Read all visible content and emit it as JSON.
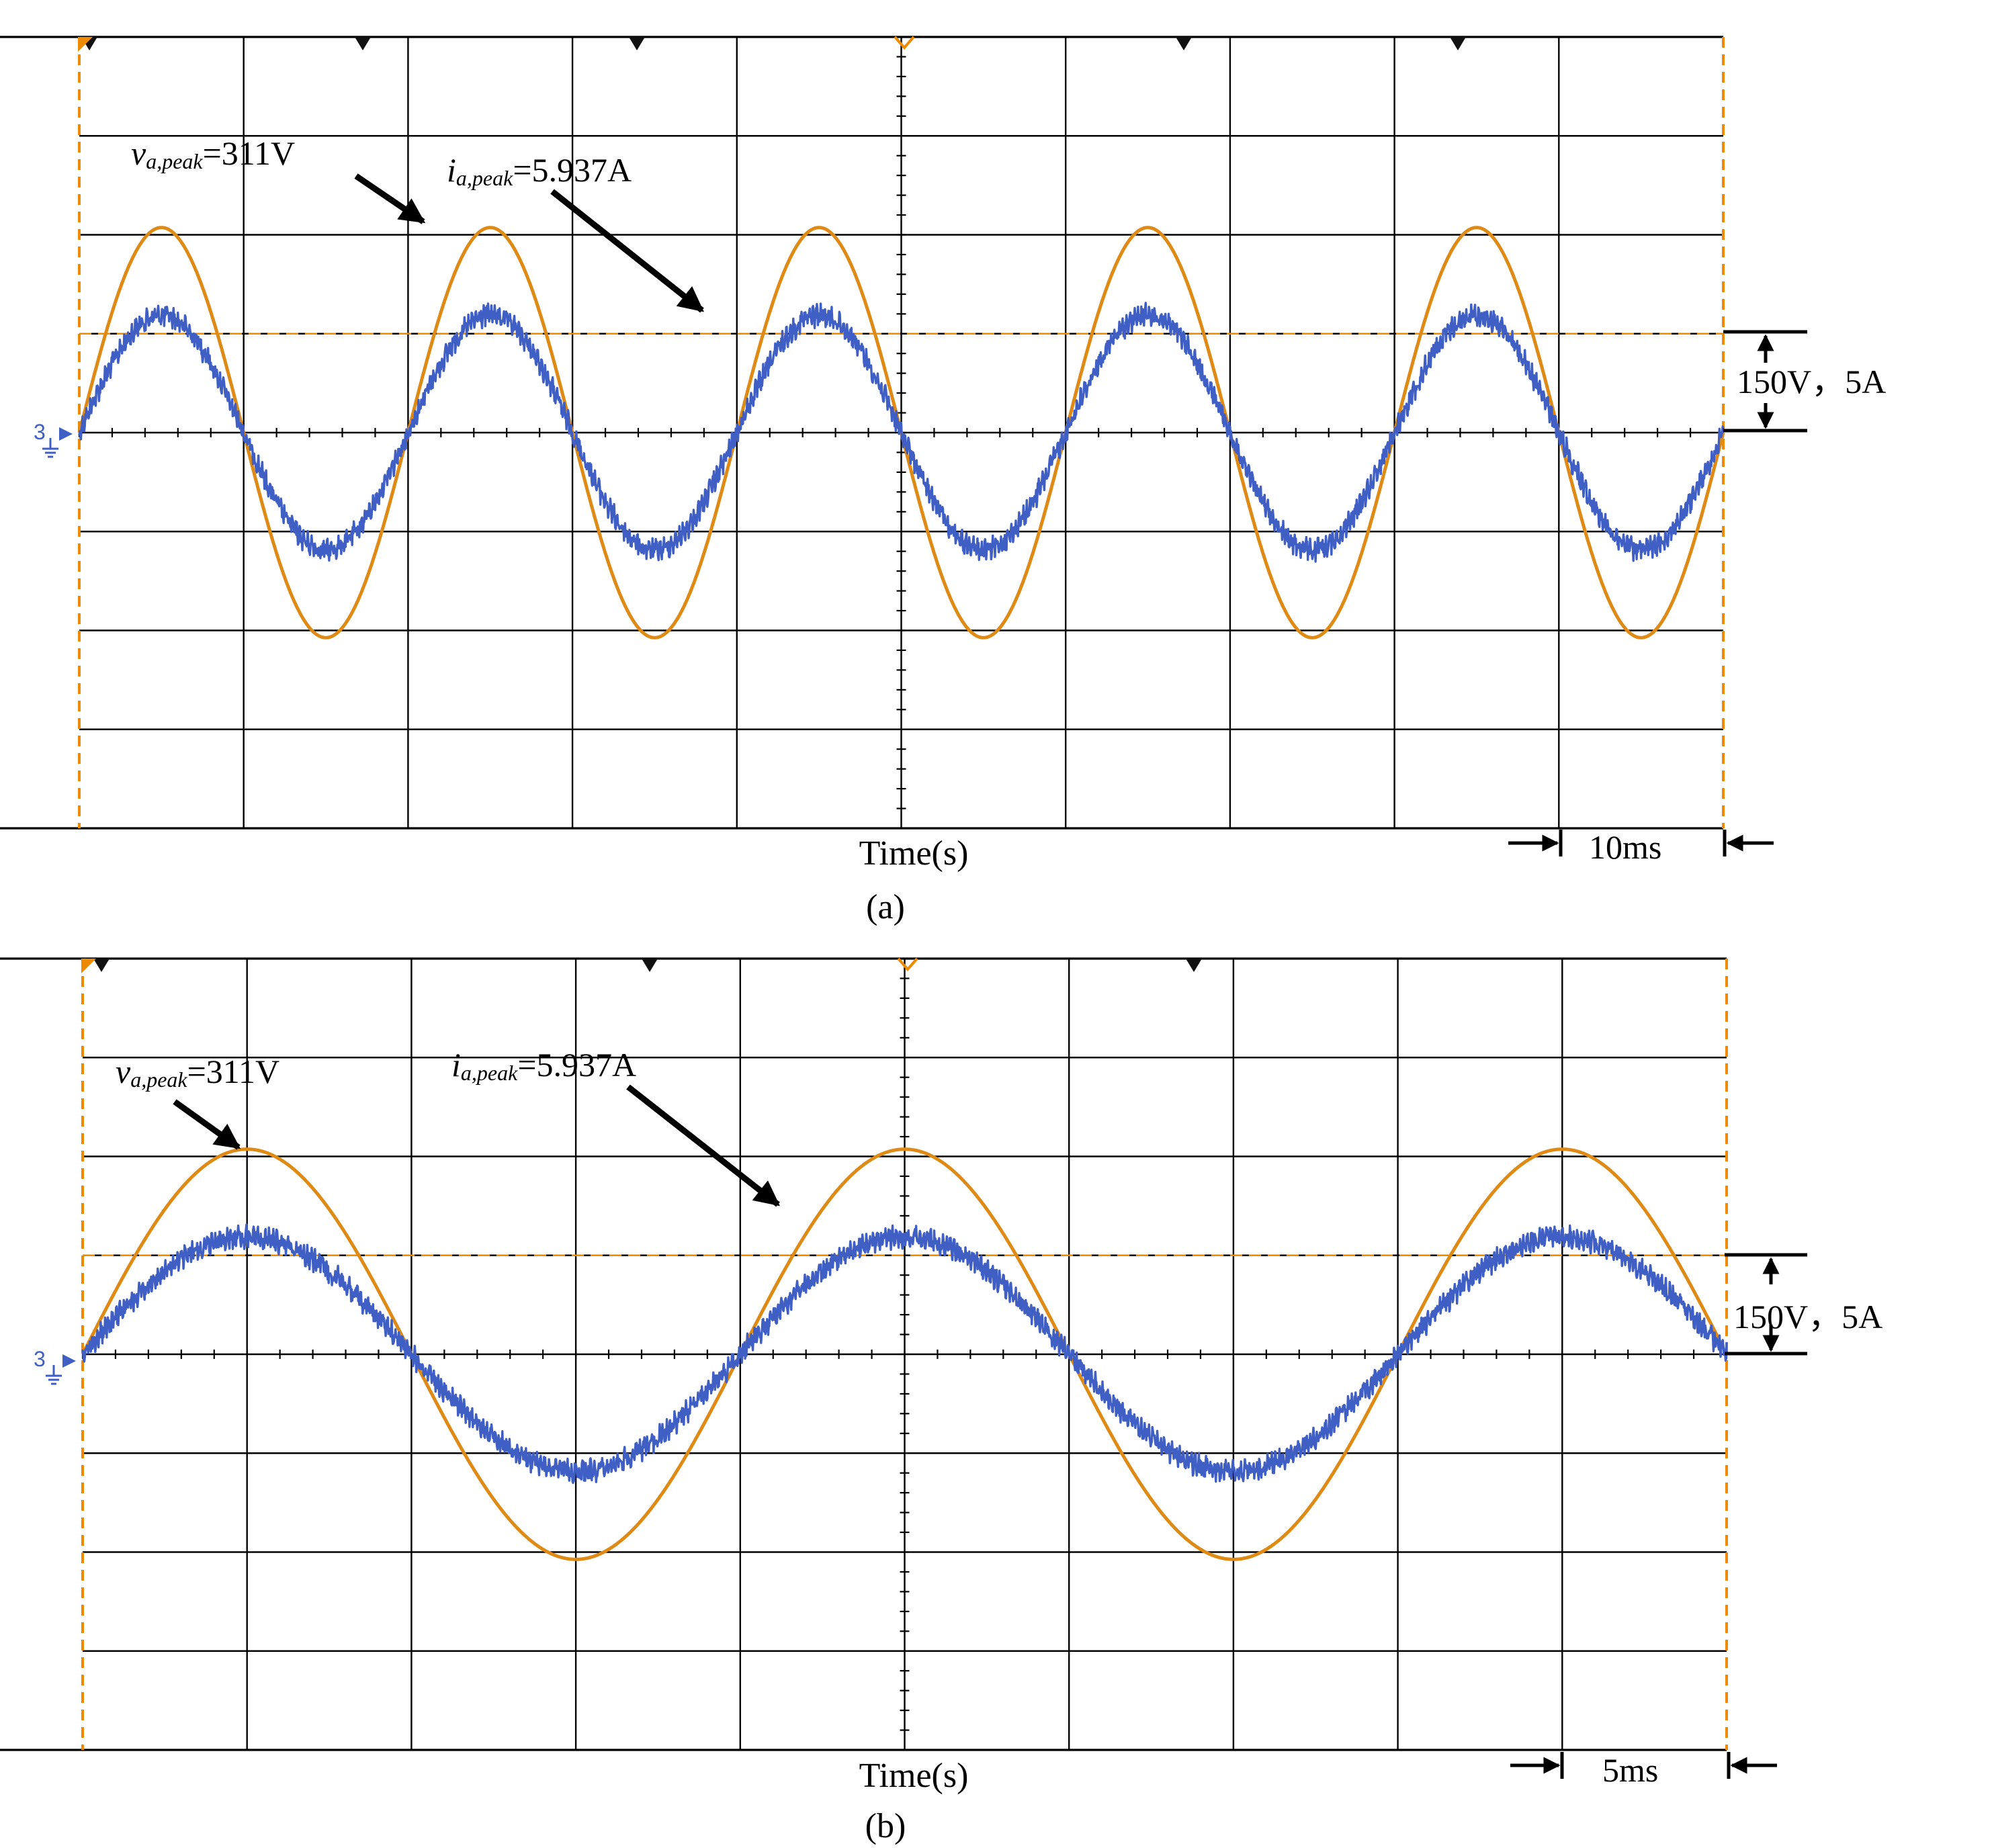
{
  "colors": {
    "voltage_trace": "#de8a14",
    "current_trace": "#3f5fc4",
    "edge_marker": "#ee8a00",
    "grid": "#000000",
    "annotation": "#000000"
  },
  "icons": {
    "trigger_marker": "triangle-down-icon",
    "ground_marker": "ground-icon"
  },
  "chart_data": [
    {
      "type": "line",
      "panel": "(a)",
      "xlabel": "Time(s)",
      "time_per_division_label": "10ms",
      "time_per_division_ms": 10,
      "divisions_x": 10,
      "divisions_y": 8,
      "scale_label": "150V，5A",
      "volts_per_division": 150,
      "amps_per_division": 5,
      "x_range_ms": [
        0,
        100
      ],
      "v_range_V": [
        -600,
        600
      ],
      "i_range_A": [
        -20,
        20
      ],
      "trigger_level_V": 150,
      "grid": true,
      "channel_marker": "3",
      "annotations": [
        {
          "var": "v",
          "subscript": "a,peak",
          "text": "=311V"
        },
        {
          "var": "i",
          "subscript": "a,peak",
          "text": "=5.937A"
        }
      ],
      "series": [
        {
          "name": "v_a",
          "unit": "V",
          "amplitude": 311,
          "frequency_hz": 50,
          "phase_deg": 0,
          "peak_times_ms": [
            5,
            25,
            45,
            65,
            85
          ]
        },
        {
          "name": "i_a",
          "unit": "A",
          "amplitude": 5.937,
          "frequency_hz": 50,
          "phase_deg": 0,
          "peak_times_ms": [
            5,
            25,
            45,
            65,
            85
          ]
        }
      ]
    },
    {
      "type": "line",
      "panel": "(b)",
      "xlabel": "Time(s)",
      "time_per_division_label": "5ms",
      "time_per_division_ms": 5,
      "divisions_x": 10,
      "divisions_y": 8,
      "scale_label": "150V，5A",
      "volts_per_division": 150,
      "amps_per_division": 5,
      "x_range_ms": [
        0,
        50
      ],
      "v_range_V": [
        -600,
        600
      ],
      "i_range_A": [
        -20,
        20
      ],
      "trigger_level_V": 150,
      "grid": true,
      "channel_marker": "3",
      "annotations": [
        {
          "var": "v",
          "subscript": "a,peak",
          "text": "=311V"
        },
        {
          "var": "i",
          "subscript": "a,peak",
          "text": "=5.937A"
        }
      ],
      "series": [
        {
          "name": "v_a",
          "unit": "V",
          "amplitude": 311,
          "frequency_hz": 50,
          "phase_deg": 0,
          "peak_times_ms": [
            5,
            25,
            45
          ]
        },
        {
          "name": "i_a",
          "unit": "A",
          "amplitude": 5.937,
          "frequency_hz": 50,
          "phase_deg": 0,
          "peak_times_ms": [
            5,
            25,
            45
          ]
        }
      ]
    }
  ]
}
